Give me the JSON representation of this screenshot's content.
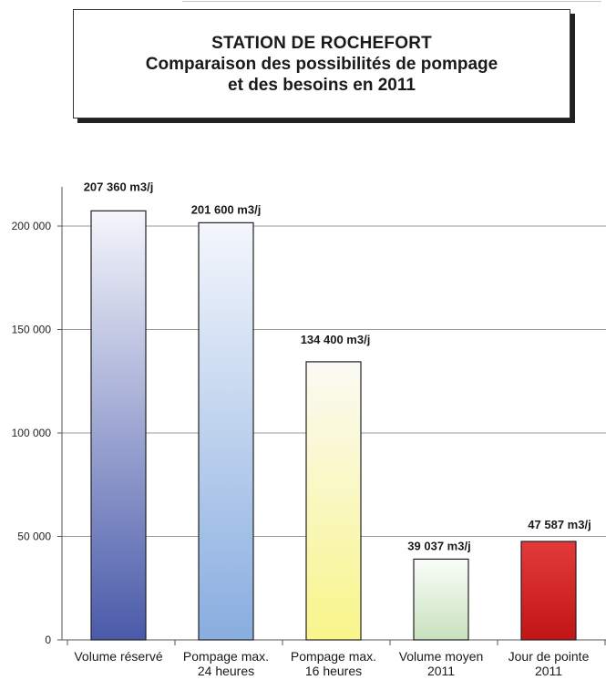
{
  "title": {
    "line1": "STATION DE ROCHEFORT",
    "line2": "Comparaison des possibilités de pompage",
    "line3": "et des besoins en 2011"
  },
  "chart_data": {
    "type": "bar",
    "title": "STATION DE ROCHEFORT Comparaison des possibilités de pompage et des besoins en 2011",
    "xlabel": "",
    "ylabel": "",
    "ylim": [
      0,
      200000
    ],
    "yticks": [
      0,
      50000,
      100000,
      150000,
      200000
    ],
    "ytick_labels": [
      "0",
      "50 000",
      "100 000",
      "150 000",
      "200 000"
    ],
    "grid": true,
    "legend": "none",
    "categories": [
      [
        "Volume réservé"
      ],
      [
        "Pompage max.",
        "24 heures"
      ],
      [
        "Pompage max.",
        "16 heures"
      ],
      [
        "Volume moyen",
        "2011"
      ],
      [
        "Jour de pointe",
        "2011"
      ]
    ],
    "values": [
      207360,
      201600,
      134400,
      39037,
      47587
    ],
    "data_labels": [
      "207 360 m3/j",
      "201 600 m3/j",
      "134 400 m3/j",
      "39 037 m3/j",
      "47 587 m3/j"
    ],
    "bar_gradients": [
      [
        "#f4f6fb",
        "#4a5aaa"
      ],
      [
        "#f4f7fc",
        "#88ade0"
      ],
      [
        "#fafaf5",
        "#f9f58a"
      ],
      [
        "#fbfdfa",
        "#c7e2bd"
      ],
      [
        "#e23a3a",
        "#c21515"
      ]
    ]
  }
}
